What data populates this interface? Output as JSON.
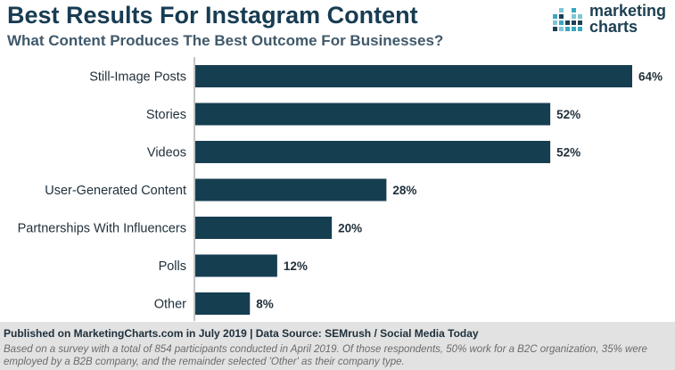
{
  "header": {
    "title": "Best Results For Instagram Content",
    "subtitle": "What Content Produces The Best Outcome For Businesses?"
  },
  "logo": {
    "line1": "marketing",
    "line2": "charts",
    "colors": [
      "#3aa8c1",
      "#7fc6d6",
      "#1e4052"
    ]
  },
  "chart_data": {
    "type": "bar",
    "orientation": "horizontal",
    "title": "Best Results For Instagram Content",
    "subtitle": "What Content Produces The Best Outcome For Businesses?",
    "categories": [
      "Still-Image Posts",
      "Stories",
      "Videos",
      "User-Generated Content",
      "Partnerships With Influencers",
      "Polls",
      "Other"
    ],
    "values": [
      64,
      52,
      52,
      28,
      20,
      12,
      8
    ],
    "value_labels": [
      "64%",
      "52%",
      "52%",
      "28%",
      "20%",
      "12%",
      "8%"
    ],
    "unit": "%",
    "xlim": [
      0,
      64
    ],
    "grid": false,
    "legend": "none",
    "bar_color": "#163e51"
  },
  "footer": {
    "source": "Published on MarketingCharts.com in July 2019 | Data Source: SEMrush / Social Media Today",
    "note": "Based on a survey with a total of 854 participants conducted in April 2019. Of those respondents, 50% work for a B2C organization, 35% were employed by a B2B company, and the remainder selected 'Other' as their company type."
  }
}
